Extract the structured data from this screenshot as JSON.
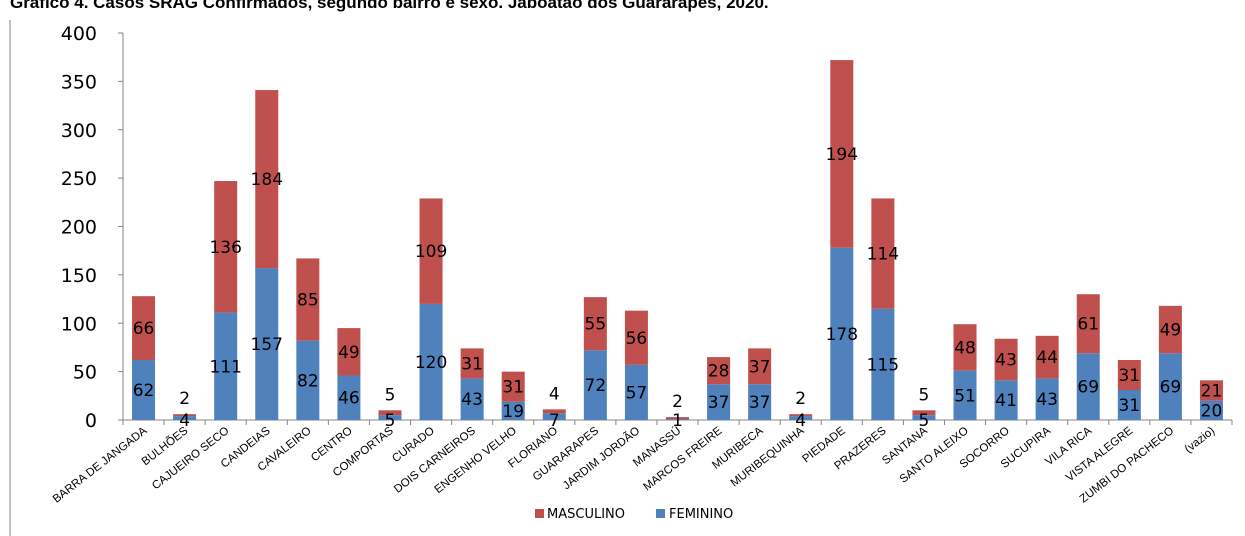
{
  "title": "Gráfico 4. Casos SRAG Confirmados, segundo bairro e sexo. Jaboatão dos Guararapes, 2020.",
  "chart_data": {
    "type": "bar",
    "stacked": true,
    "categories": [
      "BARRA DE JANGADA",
      "BULHÕES",
      "CAJUEIRO SECO",
      "CANDEIAS",
      "CAVALEIRO",
      "CENTRO",
      "COMPORTAS",
      "CURADO",
      "DOIS CARNEIROS",
      "ENGENHO VELHO",
      "FLORIANO",
      "GUARARAPES",
      "JARDIM JORDÃO",
      "MANASSÚ",
      "MARCOS FREIRE",
      "MURIBECA",
      "MURIBEQUINHA",
      "PIEDADE",
      "PRAZERES",
      "SANTANA",
      "SANTO ALEIXO",
      "SOCORRO",
      "SUCUPIRA",
      "VILA RICA",
      "VISTA ALEGRE",
      "ZUMBI DO PACHECO",
      "(vazio)"
    ],
    "series": [
      {
        "name": "FEMININO",
        "color": "#4f81bd",
        "values": [
          62,
          4,
          111,
          157,
          82,
          46,
          5,
          120,
          43,
          19,
          7,
          72,
          57,
          1,
          37,
          37,
          4,
          178,
          115,
          5,
          51,
          41,
          43,
          69,
          31,
          69,
          20
        ]
      },
      {
        "name": "MASCULINO",
        "color": "#c0504d",
        "values": [
          66,
          2,
          136,
          184,
          85,
          49,
          5,
          109,
          31,
          31,
          4,
          55,
          56,
          2,
          28,
          37,
          2,
          194,
          114,
          5,
          48,
          43,
          44,
          61,
          31,
          49,
          21
        ]
      }
    ],
    "ylim": [
      0,
      400
    ],
    "yticks": [
      0,
      50,
      100,
      150,
      200,
      250,
      300,
      350,
      400
    ],
    "legend": "bottom",
    "grid": false
  }
}
